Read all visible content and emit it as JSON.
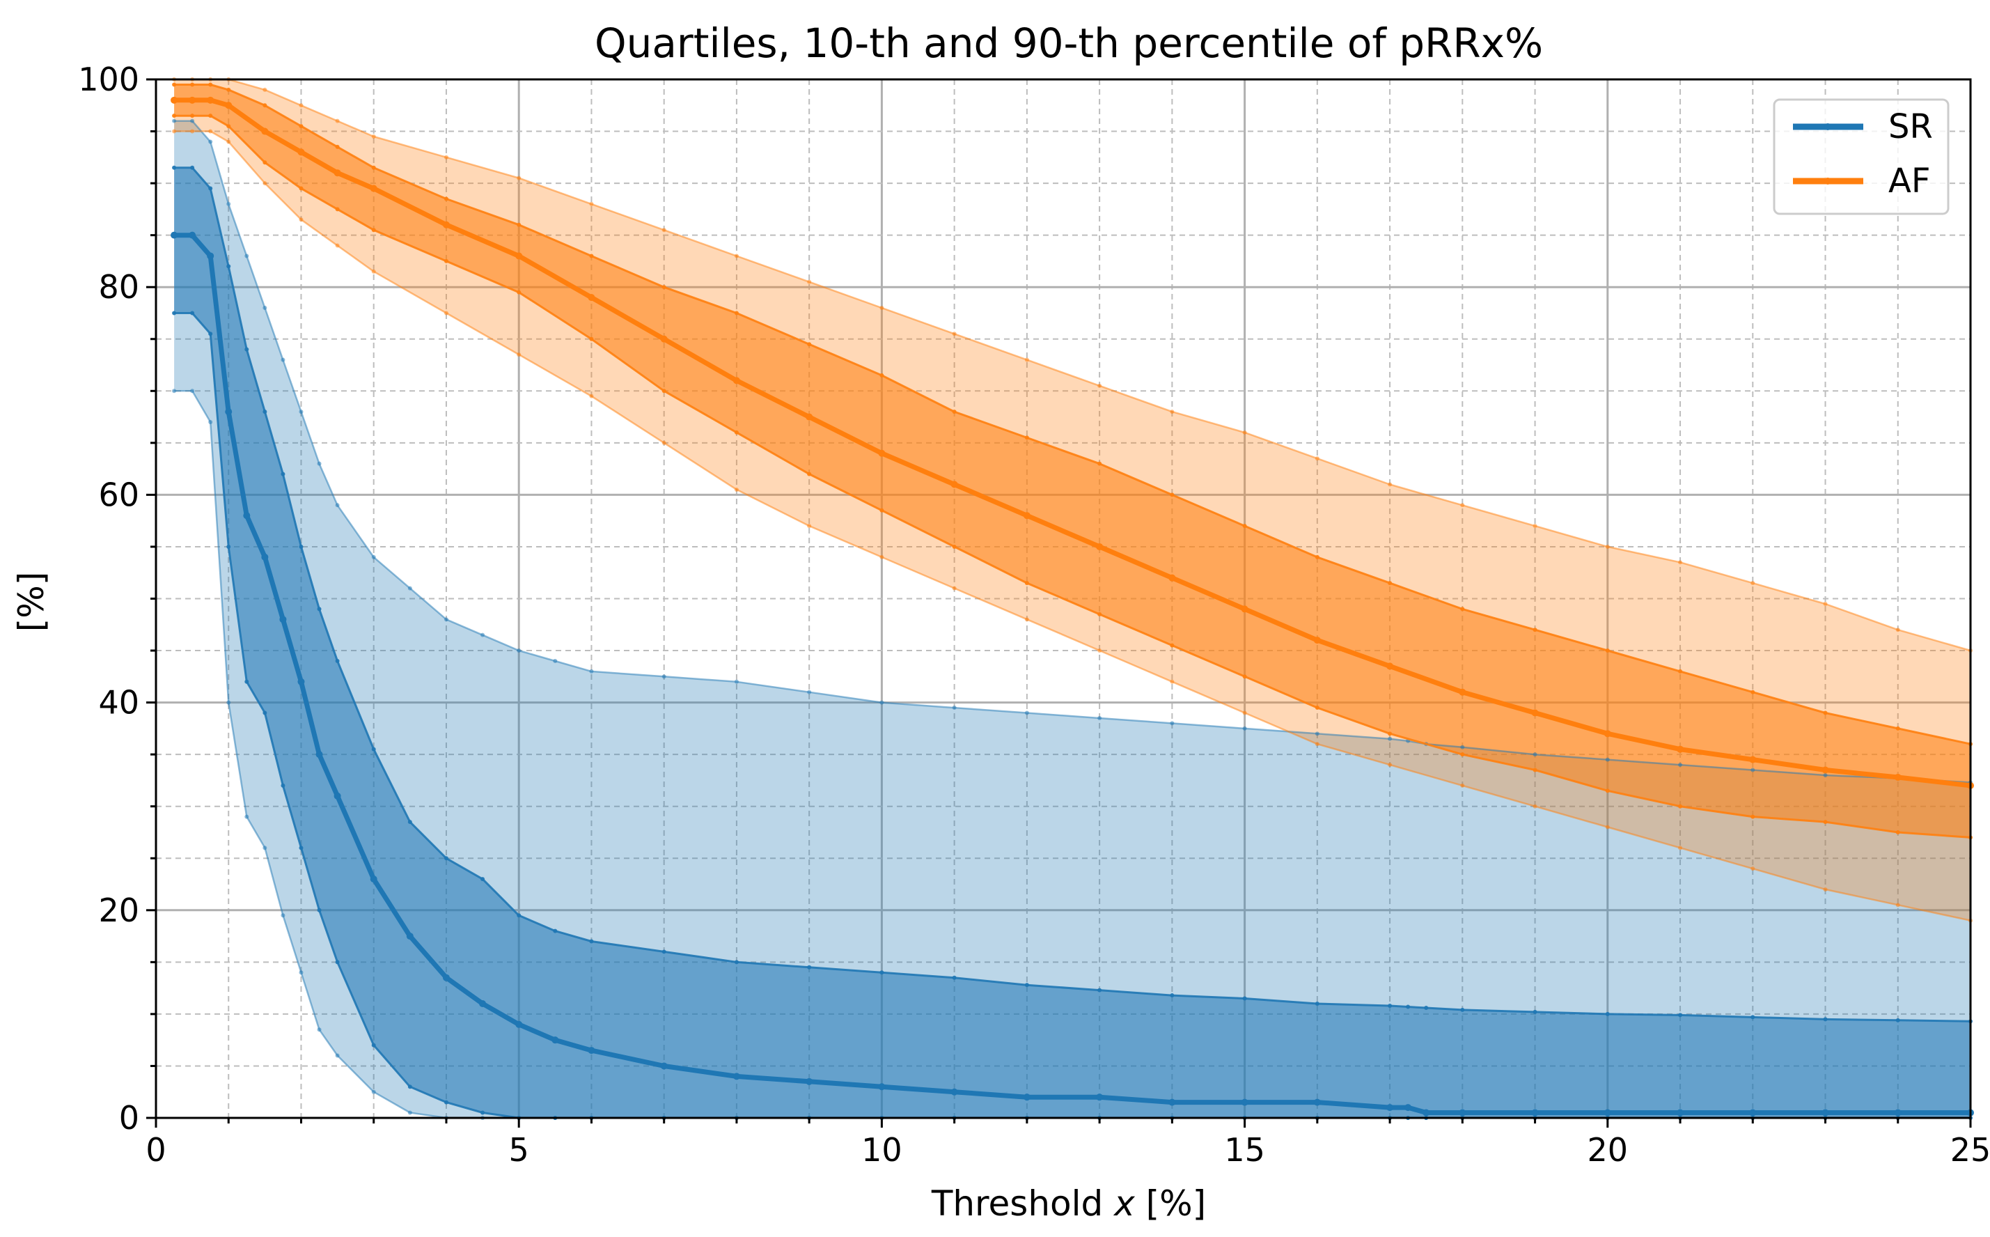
{
  "chart_data": {
    "type": "area",
    "title": "Quartiles, 10-th and 90-th percentile of pRRx%",
    "xlabel_prefix": "Threshold ",
    "xlabel_var": "x",
    "xlabel_suffix": " [%]",
    "ylabel": "[%]",
    "xlim": [
      0,
      25
    ],
    "ylim": [
      0,
      100
    ],
    "xticks": [
      0,
      5,
      10,
      15,
      20,
      25
    ],
    "yticks": [
      0,
      20,
      40,
      60,
      80,
      100
    ],
    "x_minor_step": 1,
    "y_minor_step": 5,
    "grid": true,
    "legend_position": "top-right",
    "legend": [
      {
        "name": "SR",
        "color": "#1f77b4"
      },
      {
        "name": "AF",
        "color": "#ff7f0e"
      }
    ],
    "series": [
      {
        "name": "SR",
        "color": "#1f77b4",
        "x": [
          0.25,
          0.5,
          0.75,
          1.0,
          1.25,
          1.5,
          1.75,
          2.0,
          2.25,
          2.5,
          3.0,
          3.5,
          4.0,
          4.5,
          5.0,
          5.5,
          6.0,
          7.0,
          8.0,
          9.0,
          10.0,
          11.0,
          12.0,
          13.0,
          14.0,
          15.0,
          16.0,
          17.0,
          17.25,
          17.5,
          18.0,
          19.0,
          20.0,
          21.0,
          22.0,
          23.0,
          24.0,
          25.0
        ],
        "p10": [
          70,
          70,
          67,
          40,
          29,
          26,
          19.5,
          14,
          8.5,
          6,
          2.5,
          0.5,
          0,
          0,
          0,
          0,
          0,
          0,
          0,
          0,
          0,
          0,
          0,
          0,
          0,
          0,
          0,
          0,
          0,
          0,
          0,
          0,
          0,
          0,
          0,
          0,
          0,
          0
        ],
        "q1": [
          77.5,
          77.5,
          75.5,
          55,
          42,
          39,
          32,
          26,
          20,
          15,
          7,
          3,
          1.5,
          0.5,
          0,
          0,
          0,
          0,
          0,
          0,
          0,
          0,
          0,
          0,
          0,
          0,
          0,
          0,
          0,
          0,
          0,
          0,
          0,
          0,
          0,
          0,
          0,
          0
        ],
        "median": [
          85,
          85,
          83,
          68,
          58,
          54,
          48,
          42,
          35,
          31,
          23,
          17.5,
          13.5,
          11,
          9,
          7.5,
          6.5,
          5,
          4,
          3.5,
          3,
          2.5,
          2,
          2,
          1.5,
          1.5,
          1.5,
          1,
          1,
          0.5,
          0.5,
          0.5,
          0.5,
          0.5,
          0.5,
          0.5,
          0.5,
          0.5
        ],
        "q3": [
          91.5,
          91.5,
          89.5,
          82,
          74,
          68,
          62,
          55,
          49,
          44,
          35.5,
          28.5,
          25,
          23,
          19.5,
          18,
          17,
          16,
          15,
          14.5,
          14,
          13.5,
          12.8,
          12.3,
          11.8,
          11.5,
          11,
          10.8,
          10.7,
          10.6,
          10.4,
          10.2,
          10,
          9.9,
          9.7,
          9.5,
          9.4,
          9.3
        ],
        "p90": [
          96,
          96,
          94,
          88,
          83,
          78,
          73,
          68,
          63,
          59,
          54,
          51,
          48,
          46.5,
          45,
          44,
          43,
          42.5,
          42,
          41,
          40,
          39.5,
          39,
          38.5,
          38,
          37.5,
          37,
          36.5,
          36.3,
          36,
          35.7,
          35,
          34.5,
          34,
          33.5,
          33,
          32.7,
          32.3
        ]
      },
      {
        "name": "AF",
        "color": "#ff7f0e",
        "x": [
          0.25,
          0.5,
          0.75,
          1.0,
          1.5,
          2.0,
          2.5,
          3.0,
          4.0,
          5.0,
          6.0,
          7.0,
          8.0,
          9.0,
          10.0,
          11.0,
          12.0,
          13.0,
          14.0,
          15.0,
          16.0,
          17.0,
          18.0,
          19.0,
          20.0,
          21.0,
          22.0,
          23.0,
          24.0,
          25.0
        ],
        "p10": [
          95,
          95,
          95,
          94,
          90,
          86.5,
          84,
          81.5,
          77.5,
          73.5,
          69.5,
          65,
          60.5,
          57,
          54,
          51,
          48,
          45,
          42,
          39,
          36,
          34,
          32,
          30,
          28,
          26,
          24,
          22,
          20.5,
          19
        ],
        "q1": [
          96.5,
          96.5,
          96.5,
          95.5,
          92,
          89.5,
          87.5,
          85.5,
          82.5,
          79.5,
          75,
          70,
          66,
          62,
          58.5,
          55,
          51.5,
          48.5,
          45.5,
          42.5,
          39.5,
          37,
          35,
          33.5,
          31.5,
          30,
          29,
          28.5,
          27.5,
          27
        ],
        "median": [
          98,
          98,
          98,
          97.5,
          95,
          93,
          91,
          89.5,
          86,
          83,
          79,
          75,
          71,
          67.5,
          64,
          61,
          58,
          55,
          52,
          49,
          46,
          43.5,
          41,
          39,
          37,
          35.5,
          34.5,
          33.5,
          32.8,
          32
        ],
        "q3": [
          99.5,
          99.5,
          99.5,
          99,
          97.5,
          95.5,
          93.5,
          91.5,
          88.5,
          86,
          83,
          80,
          77.5,
          74.5,
          71.5,
          68,
          65.5,
          63,
          60,
          57,
          54,
          51.5,
          49,
          47,
          45,
          43,
          41,
          39,
          37.5,
          36
        ],
        "p90": [
          100,
          100,
          100,
          100,
          99,
          97.5,
          96,
          94.5,
          92.5,
          90.5,
          88,
          85.5,
          83,
          80.5,
          78,
          75.5,
          73,
          70.5,
          68,
          66,
          63.5,
          61,
          59,
          57,
          55,
          53.5,
          51.5,
          49.5,
          47,
          45
        ]
      }
    ]
  }
}
